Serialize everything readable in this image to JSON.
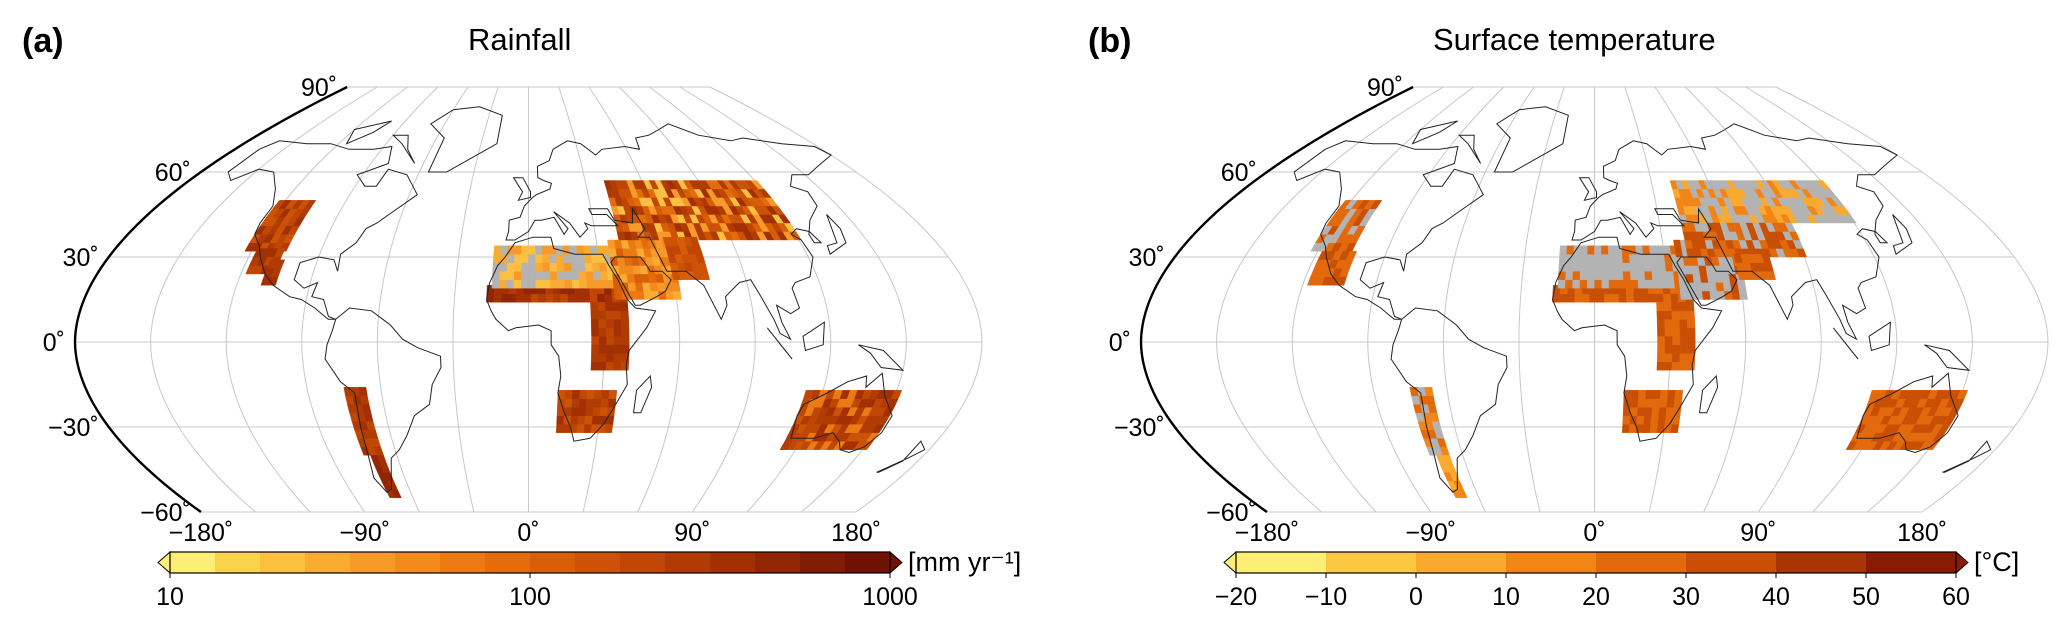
{
  "panels": [
    {
      "label": "(a)",
      "title": "Rainfall",
      "lat_ticks": [
        "90˚",
        "60˚",
        "30˚",
        "0˚",
        "−30˚",
        "−60˚"
      ],
      "lon_ticks": [
        "−180˚",
        "−90˚",
        "0˚",
        "90˚",
        "180˚"
      ],
      "colorbar": {
        "scale": "log",
        "unit": "[mm yr⁻¹]",
        "tick_labels": [
          "10",
          "100",
          "1000"
        ],
        "colors": [
          "#fdee75",
          "#fbd24c",
          "#fbc042",
          "#f9ab34",
          "#f79a2a",
          "#f28a1e",
          "#ec7a14",
          "#e56c0d",
          "#d95e09",
          "#cc5205",
          "#bf4603",
          "#b03b03",
          "#a23003",
          "#922604",
          "#821c05",
          "#6f1205"
        ],
        "extend": "both"
      },
      "gray_color": "#b3b3b3",
      "regions": "rainfall"
    },
    {
      "label": "(b)",
      "title": "Surface temperature",
      "lat_ticks": [
        "90˚",
        "60˚",
        "30˚",
        "0˚",
        "−30˚",
        "−60˚"
      ],
      "lon_ticks": [
        "−180˚",
        "−90˚",
        "0˚",
        "90˚",
        "180˚"
      ],
      "colorbar": {
        "scale": "linear",
        "unit": "[°C]",
        "tick_labels": [
          "−20",
          "−10",
          "0",
          "10",
          "20",
          "30",
          "40",
          "50",
          "60"
        ],
        "colors": [
          "#fdee75",
          "#fbc843",
          "#f9a92f",
          "#f18518",
          "#e2690c",
          "#c94f05",
          "#a83503",
          "#8a1b03"
        ],
        "extend": "both"
      },
      "gray_color": "#b3b3b3",
      "regions": "temperature"
    }
  ]
}
